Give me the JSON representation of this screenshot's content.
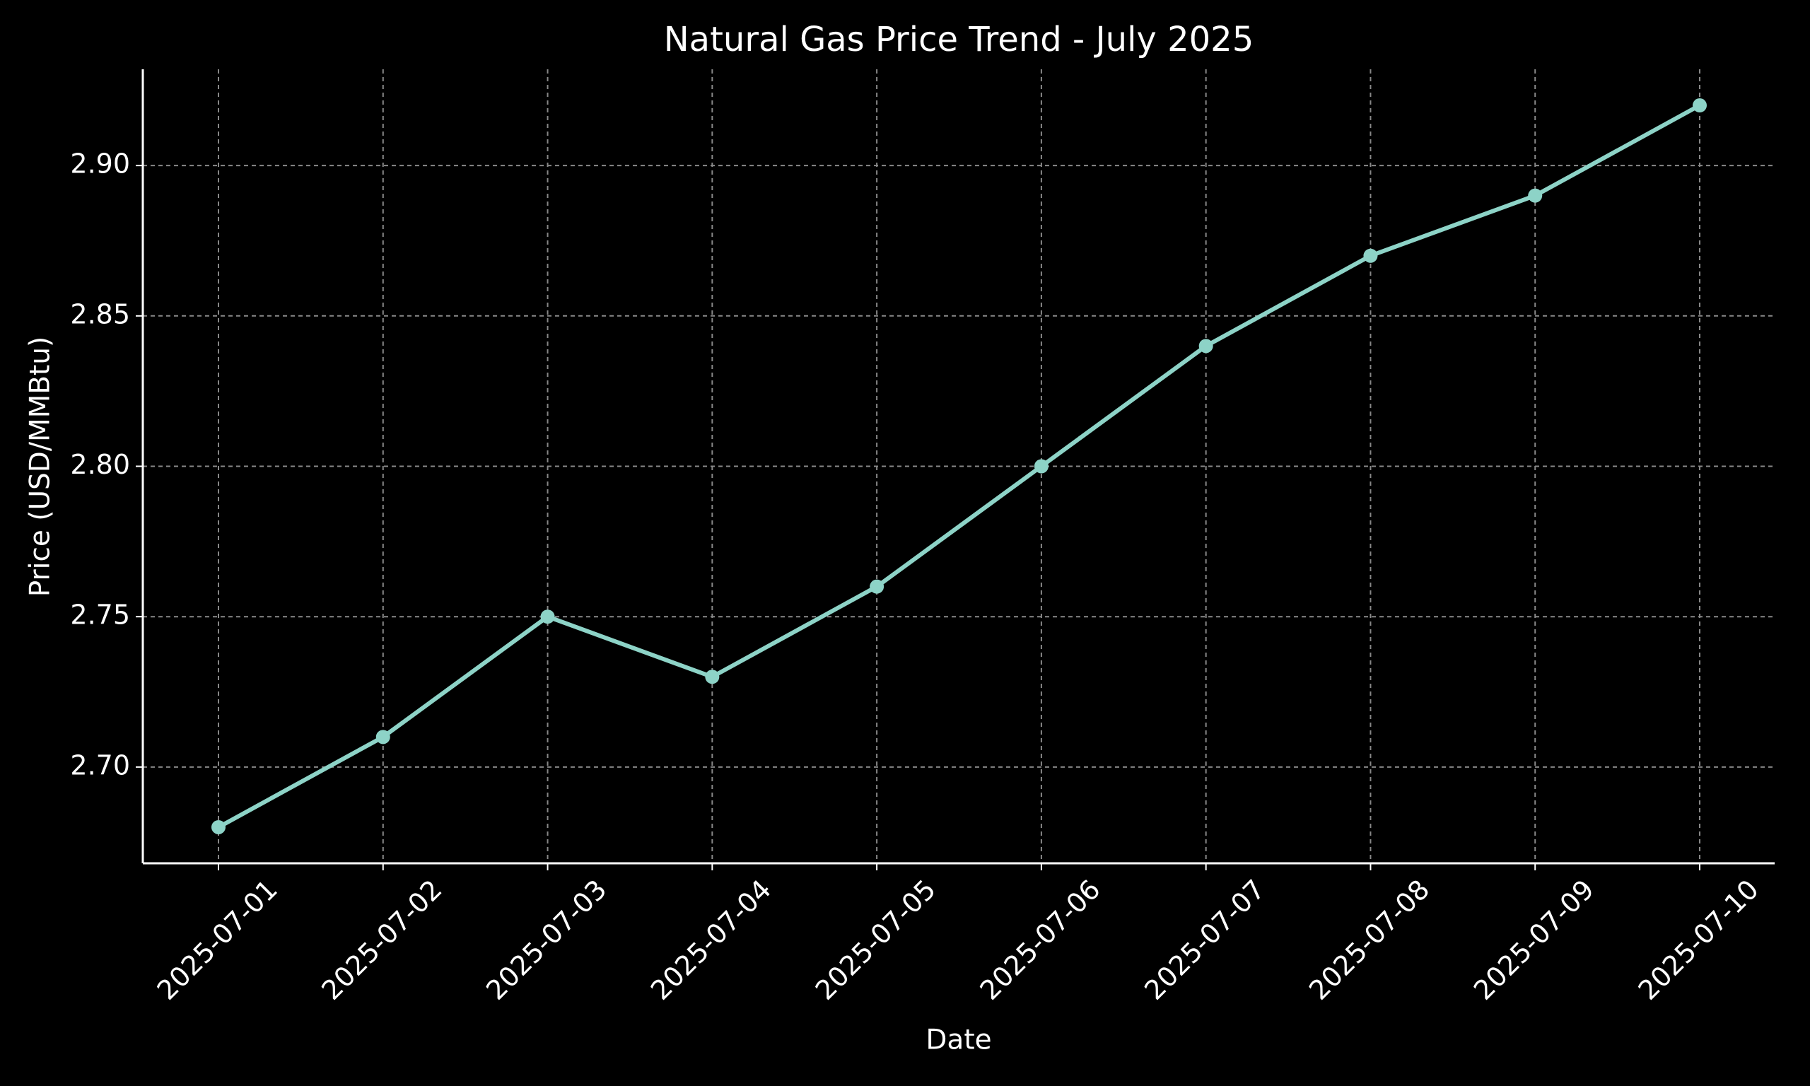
{
  "chart_data": {
    "type": "line",
    "title": "Natural Gas Price Trend - July 2025",
    "x_label": "Date",
    "y_label": "Price (USD/MMBtu)",
    "categories": [
      "2025-07-01",
      "2025-07-02",
      "2025-07-03",
      "2025-07-04",
      "2025-07-05",
      "2025-07-06",
      "2025-07-07",
      "2025-07-08",
      "2025-07-09",
      "2025-07-10"
    ],
    "values": [
      2.68,
      2.71,
      2.75,
      2.73,
      2.76,
      2.8,
      2.84,
      2.87,
      2.89,
      2.92
    ],
    "color": "#8dd3c7",
    "ylim": [
      2.668,
      2.932
    ],
    "yticks": [
      {
        "value": 2.7,
        "label": "2.70"
      },
      2.75,
      {
        "value": 2.8,
        "label": "2.80"
      },
      2.85,
      {
        "value": 2.9,
        "label": "2.90"
      }
    ],
    "grid": true
  }
}
